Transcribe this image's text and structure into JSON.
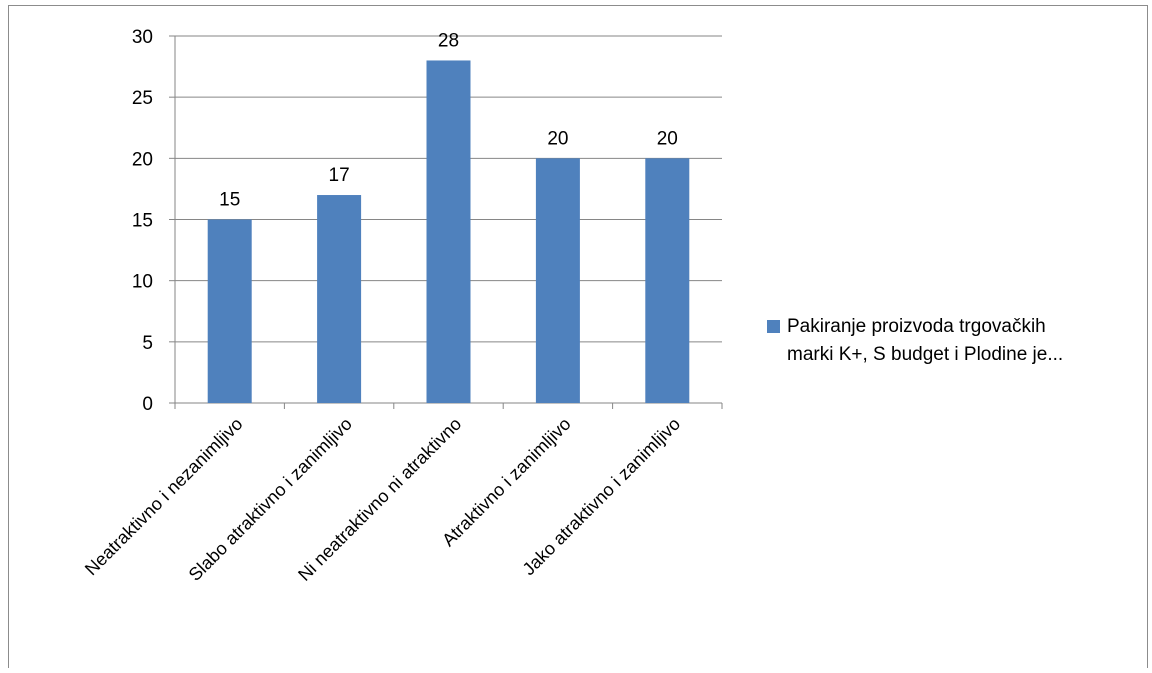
{
  "chart_data": {
    "type": "bar",
    "title": "",
    "xlabel": "",
    "ylabel": "",
    "categories": [
      "Neatraktivno i nezanimljivo",
      "Slabo atraktivno i zanimljivo",
      "Ni neatraktivno ni atraktivno",
      "Atraktivno i zanimljivo",
      "Jako atraktivno i zanimljivo"
    ],
    "series": [
      {
        "name": "Pakiranje proizvoda trgovačkih\nmarki K+, S budget i Plodine je...",
        "values": [
          15,
          17,
          28,
          20,
          20
        ],
        "color": "#4f81bd"
      }
    ],
    "ylim": [
      0,
      30
    ],
    "yticks": [
      0,
      5,
      10,
      15,
      20,
      25,
      30
    ],
    "grid": true,
    "data_labels": true,
    "legend_position": "right"
  }
}
